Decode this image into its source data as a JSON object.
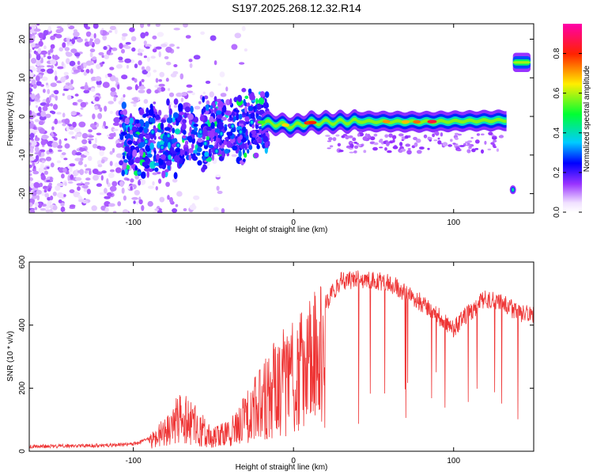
{
  "title": "S197.2025.268.12.32.R14",
  "chart_data": [
    {
      "type": "heatmap",
      "title": "S197.2025.268.12.32.R14",
      "xlabel": "Height of straight line (km)",
      "ylabel": "Frequency (Hz)",
      "xlim": [
        -165,
        150
      ],
      "ylim": [
        -25,
        24
      ],
      "xticks": [
        -100,
        0,
        100
      ],
      "yticks": [
        -20,
        -10,
        0,
        10,
        20
      ],
      "colorbar": {
        "label": "Normalized spectral amplitude",
        "range": [
          0,
          0.95
        ],
        "ticks": [
          "0.0",
          "0.2",
          "0.4",
          "0.6",
          "0.8"
        ],
        "tick_values": [
          0,
          0.2,
          0.4,
          0.6,
          0.8
        ]
      },
      "ridge": [
        {
          "x": -100,
          "y": -7
        },
        {
          "x": -80,
          "y": -6
        },
        {
          "x": -60,
          "y": -5
        },
        {
          "x": -40,
          "y": -3
        },
        {
          "x": -20,
          "y": -1.5
        },
        {
          "x": 0,
          "y": -2.5
        },
        {
          "x": 10,
          "y": -1.6
        },
        {
          "x": 40,
          "y": -1.3
        },
        {
          "x": 80,
          "y": -1.4
        },
        {
          "x": 133,
          "y": -1.0
        }
      ],
      "features": [
        {
          "label": "high-band",
          "x": [
            137,
            148
          ],
          "y": 14
        },
        {
          "label": "low-spot",
          "x": 137,
          "y": -19
        }
      ]
    },
    {
      "type": "line",
      "xlabel": "Height of straight line (km)",
      "ylabel": "SNR (10 * v/v)",
      "xlim": [
        -165,
        150
      ],
      "ylim": [
        0,
        600
      ],
      "xticks": [
        -100,
        0,
        100
      ],
      "yticks": [
        0,
        200,
        400,
        600
      ],
      "color": "#ee3333",
      "series": [
        {
          "name": "SNR envelope",
          "x": [
            -165,
            -120,
            -100,
            -90,
            -80,
            -70,
            -60,
            -50,
            -40,
            -30,
            -20,
            -10,
            0,
            10,
            20,
            30,
            40,
            50,
            60,
            70,
            80,
            90,
            100,
            110,
            120,
            130,
            140,
            150
          ],
          "values": [
            15,
            18,
            22,
            40,
            90,
            160,
            110,
            60,
            80,
            150,
            220,
            300,
            330,
            380,
            470,
            540,
            545,
            540,
            535,
            500,
            470,
            430,
            390,
            440,
            485,
            470,
            440,
            430
          ]
        }
      ]
    }
  ]
}
